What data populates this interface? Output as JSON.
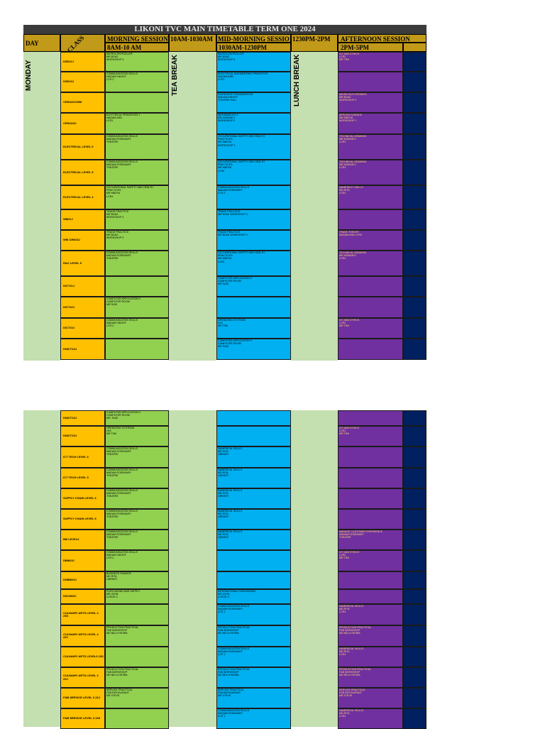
{
  "title": "LIKONI TVC MAIN TIMETABLE TERM ONE 2024",
  "headers": {
    "day": "DAY",
    "class": "CLASS",
    "morning": "MORNING SESSION",
    "morning_time": "8AM-10 AM",
    "tea_time": "10AM-1030AM",
    "mid": "MID-MORNING SESSIO",
    "mid_time": "1030AM-1230PM",
    "lunch_time": "1230PM-2PM",
    "afternoon": "AFTERNOON SESSION",
    "afternoon_time": "2PM-5PM"
  },
  "day_label": "MONDAY",
  "tea_break": "TEA BREAK",
  "lunch_break": "LUNCH BREAK",
  "section1": [
    {
      "cls": "DSE21J",
      "morn": "MICROCONTROLLER\nMR BOAZ\nWORKSHOP 4",
      "mid": "MICROCONTROLLER\nMR BOAZ\nWORKSHOP 4",
      "aft": "ICT AND ETHICS\nLCR2\nMR TIMI"
    },
    {
      "cls": "DSE23J",
      "morn": "COMMUNICATION SKILLS\nMADAM KNIGHT\nLCR 2",
      "mid": "ELECTRICAL ENGINEERING PRINCIPLES\nMADAM ANN\nLCR1",
      "aft": ""
    },
    {
      "cls": "CRS6231/33M",
      "morn": "",
      "mid": "WORKSHOP ORGANIZATION\nMADAM KNIGHT\nTHEATRE HALL",
      "aft": "MICRO ELECTRONICS\nMR BOAZ\nWORKSHOP 4"
    },
    {
      "cls": "CRS6231I",
      "morn": "ELECTRICAL PRINCIPLES 1\nMADAM ANN\nLCR1",
      "mid": "MATHEMATICS 2\nMR MOMANYI\nWORKSHOP 2",
      "aft": "APPLIED SCIENCE\nMR MBOYA\nWORKSHOP 1"
    },
    {
      "cls": "ELECTRICAL LEVEL 6",
      "morn": "COMMUNICATION SKILLS\nMADAM ROSEMARY\nTHEATRE",
      "mid": "OCCUPATIONAL SAFETY AND HEALTH\nPRACTICES\nMR MBOYA\nWORKSHOP 1",
      "aft": "TECHNICAL DRAWING\nMR MOMANYI\nLCR3"
    },
    {
      "cls": "ELECTRICAL LEVEL 5",
      "morn": "COMMUNICATION SKILLS\nMADAM ROSEMARY\nTHEATRE",
      "mid": "OCCUPATIONAL SAFETY AND HEALTH\nPRACTICES\nMR MBOYA\nLCR4",
      "aft": "TECHNICAL DRAWING\nMR MOMANYI\nLCR3"
    },
    {
      "cls": "ELECTRICAL LEVEL 4",
      "morn": "OCCUPATIONAL SAFETY AND HEALTH\nPRACTICES\nMR MBOYA\nLCR4",
      "mid": "COMMUNICATION SKILLS\nMADAM ROSEMARY\nLCR 2",
      "aft": "NUMERACY SKILLS\nMD RITA\nLCR4"
    },
    {
      "cls": "WM21J",
      "morn": "TRADE PRACTICE\nMR BOAZ\nWORKSHOP 3",
      "mid": "TRADE PRACTICE\nMR BOAZ                WORKSHOP 3",
      "aft": ""
    },
    {
      "cls": "WM 22M/23J",
      "morn": "TRADE PRACTICE\nMR BOAZ\nWORKSHOP 3",
      "mid": "TRADE PRACTICE\nMR BOAZ                WORKSHOP 3",
      "aft": "TRADE THEORY\nMADAM ANN            LCR3"
    },
    {
      "cls": "RAC LEVEL 5",
      "morn": "COMMUNICATION SKILLS\nMADAM ROSEMARY\nTHEATRE",
      "mid": "OCCUPATIONAL SAFETY AND HEALTH\nPRACTICES\nMR MBOYA\nLCR3",
      "aft": "TECHNICAL DRAWING\nMR MOMANYI\nLCR3"
    },
    {
      "cls": "DICT21J",
      "morn": "",
      "mid": "COMPUTER APPLICATION II\nCOMPUTER ROOM\nMR SUDI",
      "aft": ""
    },
    {
      "cls": "DICT22J",
      "morn": "COMPUTER APPLICATION II\nCOMPUTER ROOM\nMR SUDI",
      "mid": "",
      "aft": ""
    },
    {
      "cls": "DICT23J",
      "morn": "COMMUNICATION SKILLS\nMADAM KNIGHT\nLCR 2",
      "mid": "OPERATING SYSTEMS\nLR4\nMR TIMI",
      "aft": "ICT AND ETHICS\nLCR2\nMR TIMI"
    },
    {
      "cls": "DNICT24J",
      "morn": "",
      "mid": "COMPUTER APPLICATION II\nCOMPUTER ROOM\nMR SUDI",
      "aft": ""
    }
  ],
  "section2": [
    {
      "cls": "DNICT23J",
      "morn": "COMPUTER APPLICATION II\nCOMPUTER ROOM\nMR. SUDI",
      "mid": "",
      "aft": ""
    },
    {
      "cls": "DNICT23J",
      "morn": "OPERATING SYSTEMS\nLR4\nMR TIMI",
      "mid": "",
      "aft": "ICT AND ETHICS\nLCR2\nMR TIMI"
    },
    {
      "cls": "ICT TECH LEVEL 6",
      "morn": "COMMUNICATION SKILLS\nMADAM ROSEMARY\nTHEATRE",
      "mid": "NUMERICAL SKILLS\nMD RITA\nLIBRARY",
      "aft": ""
    },
    {
      "cls": "ICT TECH LEVEL 5",
      "morn": "COMMUNICATION SKILLS\nMADAM ROSEMARY\nTHEATRE",
      "mid": "NUMERICAL SKILLS\nMD RITA\nLIBRARY",
      "aft": ""
    },
    {
      "cls": "SUPPLY CHAIN LEVEL 6",
      "morn": "COMMUNICATION SKILLS\nMADAM ROSEMARY\nTHEATRE",
      "mid": "NUMERICAL SKILLS\nMD RITA\nLIBRARY",
      "aft": ""
    },
    {
      "cls": "SUPPLY CHAIN LEVEL 5",
      "morn": "COMMUNICATION SKILLS\nMADAM ROSEMARY\nTHEATRE",
      "mid": "NUMERICAL SKILLS\nMD RITA\nLIBRARY",
      "aft": ""
    },
    {
      "cls": "BM LEVEL6",
      "morn": "COMMUNICATION SKILLS\nMADAM ROSEMARY\nTHEATRE",
      "mid": "NUMERICAL SKILLS\nMD RITA\nLIBRARY",
      "aft": "MANAGE CUSTOMER EXPERIENCE\nMADAM ROSEMARY\nTHEATRE"
    },
    {
      "cls": "DBM23J",
      "morn": "COMMUNICATION SKILLS\nMADAM KNIGHT\nLCR 2",
      "mid": "",
      "aft": "ICT AND ETHICS\nLCR2\nMR TIMI"
    },
    {
      "cls": "DNBM23J",
      "morn": "BUSINESS FINANCE\n   MD RITA\n      LIBRARY",
      "mid": "",
      "aft": ""
    },
    {
      "cls": "DSCM23J",
      "morn": "PURCHASING AND SUPPLY\n   MR JOHN\n      LCROD 3",
      "mid": "INTERNATIONAL PURCHASING\n   MR JOHN\n      LCROD 3",
      "aft": ""
    },
    {
      "cls": "CULINARY ARTS LEVEL 4 23S",
      "morn": "",
      "mid": "COMMUNICATION SKILLS\nMADAM ROSEMARY\nLCR 1",
      "aft": "NUMERICAL SKILLS\nMD RITA\nLCR4"
    },
    {
      "cls": "CULINARY ARTS LEVEL 4 23J",
      "morn": "PRODUCTION PRACTICAL\nF&B WORKSHOP\nMD NELLY/SHIRA",
      "mid": "PRODUCTION PRACTICAL\nF&B WORKSHOP\nMD NELLY/SHIRA",
      "aft": "PRODUCTION PRACTICAL\nF&B WORKSHOP\nMD NELLY/SHIRA"
    },
    {
      "cls": "CULINARY ARTS LEVEL3 23S",
      "morn": "",
      "mid": "COMMUNICATION SKILLS\nMADAM ROSEMARY\nLCR 1",
      "aft": "NUMERICAL SKILLS\nMD RITA\nLCR4"
    },
    {
      "cls": "CULINARY ARTS LEVEL 3 23J",
      "morn": "PRODUCTION PRACTICAL\nF&B WORKSHOP\nMD NELLY/SHIRA",
      "mid": "PRODUCTION PRACTICAL\nF&B WORKSHOP\nMD NELLY/SHIRA",
      "aft": "PRODUCTION PRACTICAL\nF&B WORKSHOP\nMD NELLY/SHIRA"
    },
    {
      "cls": "F&B SERVICE LEVEL 3 23J",
      "morn": "SERVICE PRACTICAL\nF&B RESTAURANT\nMR STEVE",
      "mid": "SERVICE PRACTICAL\nF&B RESTAURANT\nMR STEVE",
      "aft": "SERVICE PRACTICAL\nF&B RESTAURANT\nMR STEVE"
    },
    {
      "cls": "F&B SERVICE LEVEL 3 23S",
      "morn": "",
      "mid": "COMMUNICATION SKILLS\nMADAM ROSEMARY\nLCR 1",
      "aft": "NUMERICAL SKILLS\nMD RITA\nLCR4"
    }
  ]
}
